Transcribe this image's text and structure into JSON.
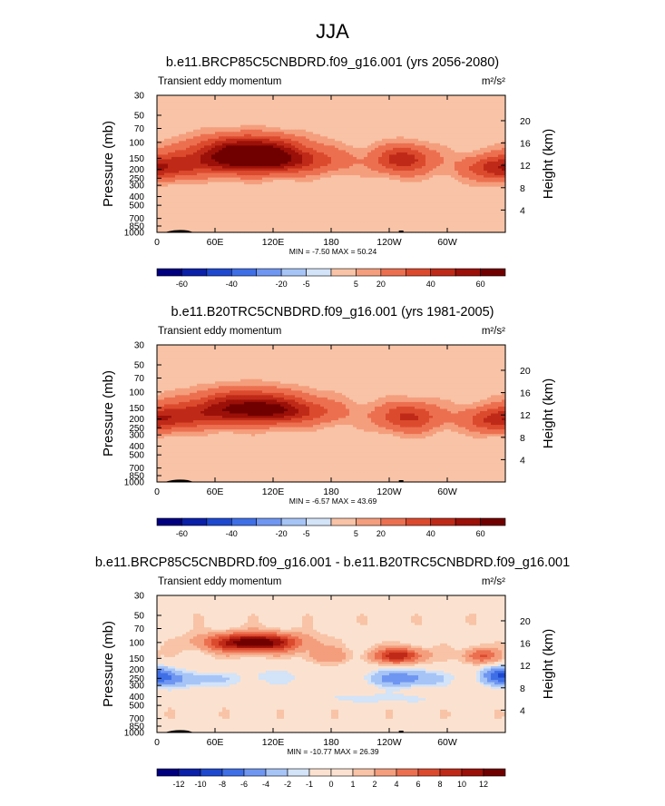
{
  "main_title": "JJA",
  "colors": {
    "scale_full": [
      "#00007f",
      "#0b20a8",
      "#1e49cf",
      "#3f6fe7",
      "#6f96f1",
      "#a6c4f6",
      "#d3e3f8",
      "#fbe2d0",
      "#f8c3a6",
      "#f49e7d",
      "#ec7050",
      "#dc4a2e",
      "#bf2a18",
      "#9b1008",
      "#700000"
    ]
  },
  "chart_data": [
    {
      "type": "heatmap",
      "title": "b.e11.BRCP85C5CNBDRD.f09_g16.001 (yrs 2056-2080)",
      "left_label": "Transient eddy momentum",
      "right_label": "m²/s²",
      "ylabel": "Pressure (mb)",
      "ylabel_right": "Height (km)",
      "x_ticks": [
        "0",
        "60E",
        "120E",
        "180",
        "120W",
        "60W"
      ],
      "x_tick_lons": [
        0,
        60,
        120,
        180,
        240,
        300
      ],
      "xlim": [
        0,
        360
      ],
      "y_ticks": [
        "30",
        "50",
        "70",
        "100",
        "150",
        "200",
        "250",
        "300",
        "400",
        "500",
        "700",
        "850",
        "1000"
      ],
      "y_tick_p": [
        30,
        50,
        70,
        100,
        150,
        200,
        250,
        300,
        400,
        500,
        700,
        850,
        1000
      ],
      "ylim": [
        30,
        1000
      ],
      "height_ticks": [
        "4",
        "8",
        "12",
        "16",
        "20"
      ],
      "height_km": [
        4,
        8,
        12,
        16,
        20
      ],
      "min_max": "MIN = -7.50  MAX = 50.24",
      "colorbar_labels": [
        "-60",
        "-40",
        "-20",
        "-5",
        "5",
        "20",
        "40",
        "60"
      ],
      "colorbar_levels": [
        -60,
        -50,
        -40,
        -30,
        -20,
        -10,
        -5,
        0,
        5,
        10,
        20,
        30,
        40,
        50,
        60
      ],
      "colorbar_label_indices": [
        1,
        3,
        5,
        6,
        8,
        9,
        11,
        13
      ],
      "features": [
        {
          "lon": 95,
          "p": 120,
          "value": 50,
          "sigma_lon": 38,
          "sigma_logp": 0.11
        },
        {
          "lon": 58,
          "p": 170,
          "value": 25,
          "sigma_lon": 55,
          "sigma_logp": 0.1
        },
        {
          "lon": 120,
          "p": 165,
          "value": 28,
          "sigma_lon": 35,
          "sigma_logp": 0.09
        },
        {
          "lon": 255,
          "p": 155,
          "value": 35,
          "sigma_lon": 20,
          "sigma_logp": 0.11
        },
        {
          "lon": 355,
          "p": 200,
          "value": 28,
          "sigma_lon": 25,
          "sigma_logp": 0.09
        },
        {
          "lon": 180,
          "p": 160,
          "value": 7,
          "sigma_lon": 30,
          "sigma_logp": 0.1
        }
      ],
      "background": 2
    },
    {
      "type": "heatmap",
      "title": "b.e11.B20TRC5CNBDRD.f09_g16.001 (yrs 1981-2005)",
      "left_label": "Transient eddy momentum",
      "right_label": "m²/s²",
      "ylabel": "Pressure (mb)",
      "ylabel_right": "Height (km)",
      "x_ticks": [
        "0",
        "60E",
        "120E",
        "180",
        "120W",
        "60W"
      ],
      "x_tick_lons": [
        0,
        60,
        120,
        180,
        240,
        300
      ],
      "xlim": [
        0,
        360
      ],
      "y_ticks": [
        "30",
        "50",
        "70",
        "100",
        "150",
        "200",
        "250",
        "300",
        "400",
        "500",
        "700",
        "850",
        "1000"
      ],
      "y_tick_p": [
        30,
        50,
        70,
        100,
        150,
        200,
        250,
        300,
        400,
        500,
        700,
        850,
        1000
      ],
      "ylim": [
        30,
        1000
      ],
      "height_ticks": [
        "4",
        "8",
        "12",
        "16",
        "20"
      ],
      "height_km": [
        4,
        8,
        12,
        16,
        20
      ],
      "min_max": "MIN = -6.57  MAX = 43.69",
      "colorbar_labels": [
        "-60",
        "-40",
        "-20",
        "-5",
        "5",
        "20",
        "40",
        "60"
      ],
      "colorbar_levels": [
        -60,
        -50,
        -40,
        -30,
        -20,
        -10,
        -5,
        0,
        5,
        10,
        20,
        30,
        40,
        50,
        60
      ],
      "colorbar_label_indices": [
        1,
        3,
        5,
        6,
        8,
        9,
        11,
        13
      ],
      "features": [
        {
          "lon": 95,
          "p": 140,
          "value": 40,
          "sigma_lon": 40,
          "sigma_logp": 0.12
        },
        {
          "lon": 40,
          "p": 180,
          "value": 22,
          "sigma_lon": 45,
          "sigma_logp": 0.1
        },
        {
          "lon": 130,
          "p": 170,
          "value": 22,
          "sigma_lon": 30,
          "sigma_logp": 0.09
        },
        {
          "lon": 260,
          "p": 190,
          "value": 30,
          "sigma_lon": 22,
          "sigma_logp": 0.11
        },
        {
          "lon": 355,
          "p": 210,
          "value": 26,
          "sigma_lon": 25,
          "sigma_logp": 0.09
        },
        {
          "lon": 180,
          "p": 170,
          "value": 6,
          "sigma_lon": 30,
          "sigma_logp": 0.1
        }
      ],
      "background": 2
    },
    {
      "type": "heatmap",
      "title": "b.e11.BRCP85C5CNBDRD.f09_g16.001 - b.e11.B20TRC5CNBDRD.f09_g16.001",
      "left_label": "Transient eddy momentum",
      "right_label": "m²/s²",
      "ylabel": "Pressure (mb)",
      "ylabel_right": "Height (km)",
      "x_ticks": [
        "0",
        "60E",
        "120E",
        "180",
        "120W",
        "60W"
      ],
      "x_tick_lons": [
        0,
        60,
        120,
        180,
        240,
        300
      ],
      "xlim": [
        0,
        360
      ],
      "y_ticks": [
        "30",
        "50",
        "70",
        "100",
        "150",
        "200",
        "250",
        "300",
        "400",
        "500",
        "700",
        "850",
        "1000"
      ],
      "y_tick_p": [
        30,
        50,
        70,
        100,
        150,
        200,
        250,
        300,
        400,
        500,
        700,
        850,
        1000
      ],
      "ylim": [
        30,
        1000
      ],
      "height_ticks": [
        "4",
        "8",
        "12",
        "16",
        "20"
      ],
      "height_km": [
        4,
        8,
        12,
        16,
        20
      ],
      "min_max": "MIN = -10.77  MAX = 26.39",
      "colorbar_labels": [
        "-12",
        "-10",
        "-8",
        "-6",
        "-4",
        "-2",
        "-1",
        "0",
        "1",
        "2",
        "4",
        "6",
        "8",
        "10",
        "12"
      ],
      "colorbar_levels": [
        -14,
        -12,
        -10,
        -8,
        -6,
        -4,
        -2,
        -1,
        0,
        1,
        2,
        4,
        6,
        8,
        10,
        12,
        14
      ],
      "colorbar_label_indices": [
        1,
        2,
        3,
        4,
        5,
        6,
        7,
        8,
        9,
        10,
        11,
        12,
        13,
        14,
        15
      ],
      "features": [
        {
          "lon": 100,
          "p": 100,
          "value": 14,
          "sigma_lon": 32,
          "sigma_logp": 0.07
        },
        {
          "lon": 250,
          "p": 140,
          "value": 9,
          "sigma_lon": 18,
          "sigma_logp": 0.06
        },
        {
          "lon": 175,
          "p": 140,
          "value": 3,
          "sigma_lon": 15,
          "sigma_logp": 0.06
        },
        {
          "lon": 335,
          "p": 140,
          "value": 6,
          "sigma_lon": 12,
          "sigma_logp": 0.06
        },
        {
          "lon": 30,
          "p": 260,
          "value": -4,
          "sigma_lon": 30,
          "sigma_logp": 0.07
        },
        {
          "lon": 120,
          "p": 240,
          "value": -2,
          "sigma_lon": 30,
          "sigma_logp": 0.07
        },
        {
          "lon": 255,
          "p": 250,
          "value": -6,
          "sigma_lon": 28,
          "sigma_logp": 0.07
        },
        {
          "lon": 355,
          "p": 230,
          "value": -7,
          "sigma_lon": 15,
          "sigma_logp": 0.07
        },
        {
          "lon": 230,
          "p": 420,
          "value": -2,
          "sigma_lon": 60,
          "sigma_logp": 0.05
        }
      ],
      "background": 0.5
    }
  ]
}
